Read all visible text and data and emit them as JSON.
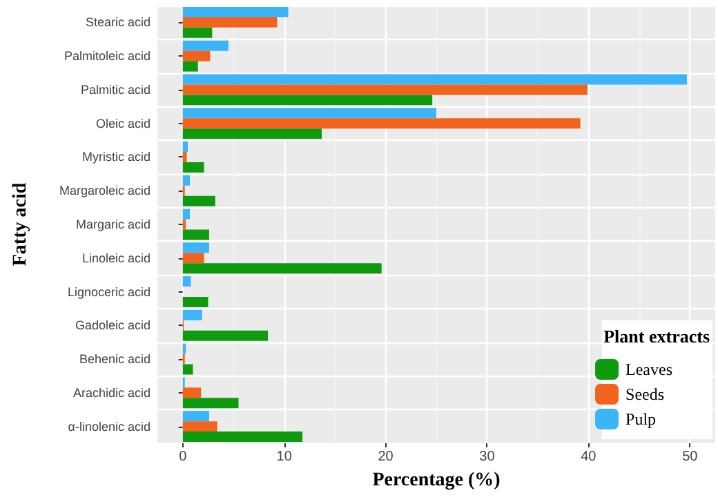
{
  "chart_data": {
    "type": "bar",
    "orientation": "horizontal",
    "xlabel": "Percentage (%)",
    "ylabel": "Fatty acid",
    "legend_title": "Plant extracts",
    "legend": "bottom right",
    "grid": true,
    "categories": [
      "Stearic acid",
      "Palmitoleic acid",
      "Palmitic acid",
      "Oleic acid",
      "Myristic acid",
      "Margaroleic acid",
      "Margaric acid",
      "Linoleic acid",
      "Lignoceric acid",
      "Gadoleic acid",
      "Behenic acid",
      "Arachidic acid",
      "α-linolenic acid"
    ],
    "xlim": [
      -2.5,
      52.5
    ],
    "xticks": [
      0,
      10,
      20,
      30,
      40,
      50
    ],
    "series": [
      {
        "name": "Leaves",
        "color": "#109a10",
        "values": [
          2.9,
          1.5,
          24.6,
          13.7,
          2.1,
          3.2,
          2.6,
          19.6,
          2.5,
          8.4,
          1.0,
          5.5,
          11.8
        ]
      },
      {
        "name": "Seeds",
        "color": "#f2641e",
        "values": [
          9.3,
          2.7,
          39.9,
          39.2,
          0.4,
          0.2,
          0.3,
          2.1,
          null,
          0.1,
          0.2,
          1.8,
          3.4
        ]
      },
      {
        "name": "Pulp",
        "color": "#3cb4f8",
        "values": [
          10.4,
          4.5,
          49.7,
          25.0,
          0.5,
          0.7,
          0.7,
          2.6,
          0.8,
          1.9,
          0.3,
          0.2,
          2.6
        ]
      }
    ]
  }
}
